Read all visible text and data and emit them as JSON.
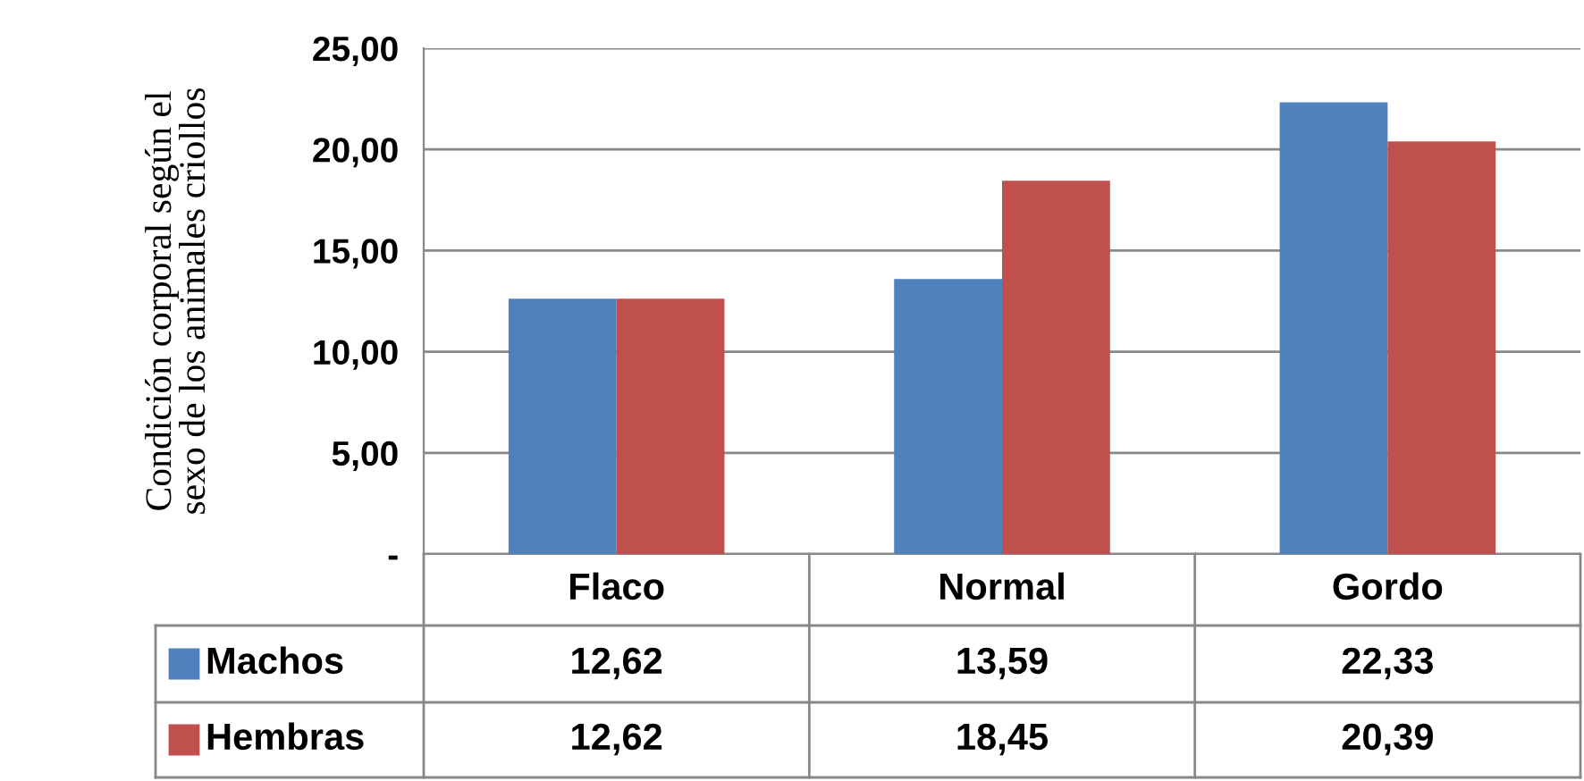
{
  "chart_data": {
    "type": "bar",
    "ylabel": "Condición corporal según el\nsexo de los animales criollos",
    "categories": [
      "Flaco",
      "Normal",
      "Gordo"
    ],
    "series": [
      {
        "name": "Machos",
        "color": "#4f81bd",
        "values": [
          12.62,
          13.59,
          22.33
        ],
        "value_labels": [
          "12,62",
          "13,59",
          "22,33"
        ]
      },
      {
        "name": "Hembras",
        "color": "#c0504d",
        "values": [
          12.62,
          18.45,
          20.39
        ],
        "value_labels": [
          "12,62",
          "18,45",
          "20,39"
        ]
      }
    ],
    "ylim": [
      0,
      25
    ],
    "yticks": [
      {
        "value": 0,
        "label": "-"
      },
      {
        "value": 5,
        "label": "5,00"
      },
      {
        "value": 10,
        "label": "10,00"
      },
      {
        "value": 15,
        "label": "15,00"
      },
      {
        "value": 20,
        "label": "20,00"
      },
      {
        "value": 25,
        "label": "25,00"
      }
    ],
    "grid": "y",
    "legend": "bottom"
  }
}
